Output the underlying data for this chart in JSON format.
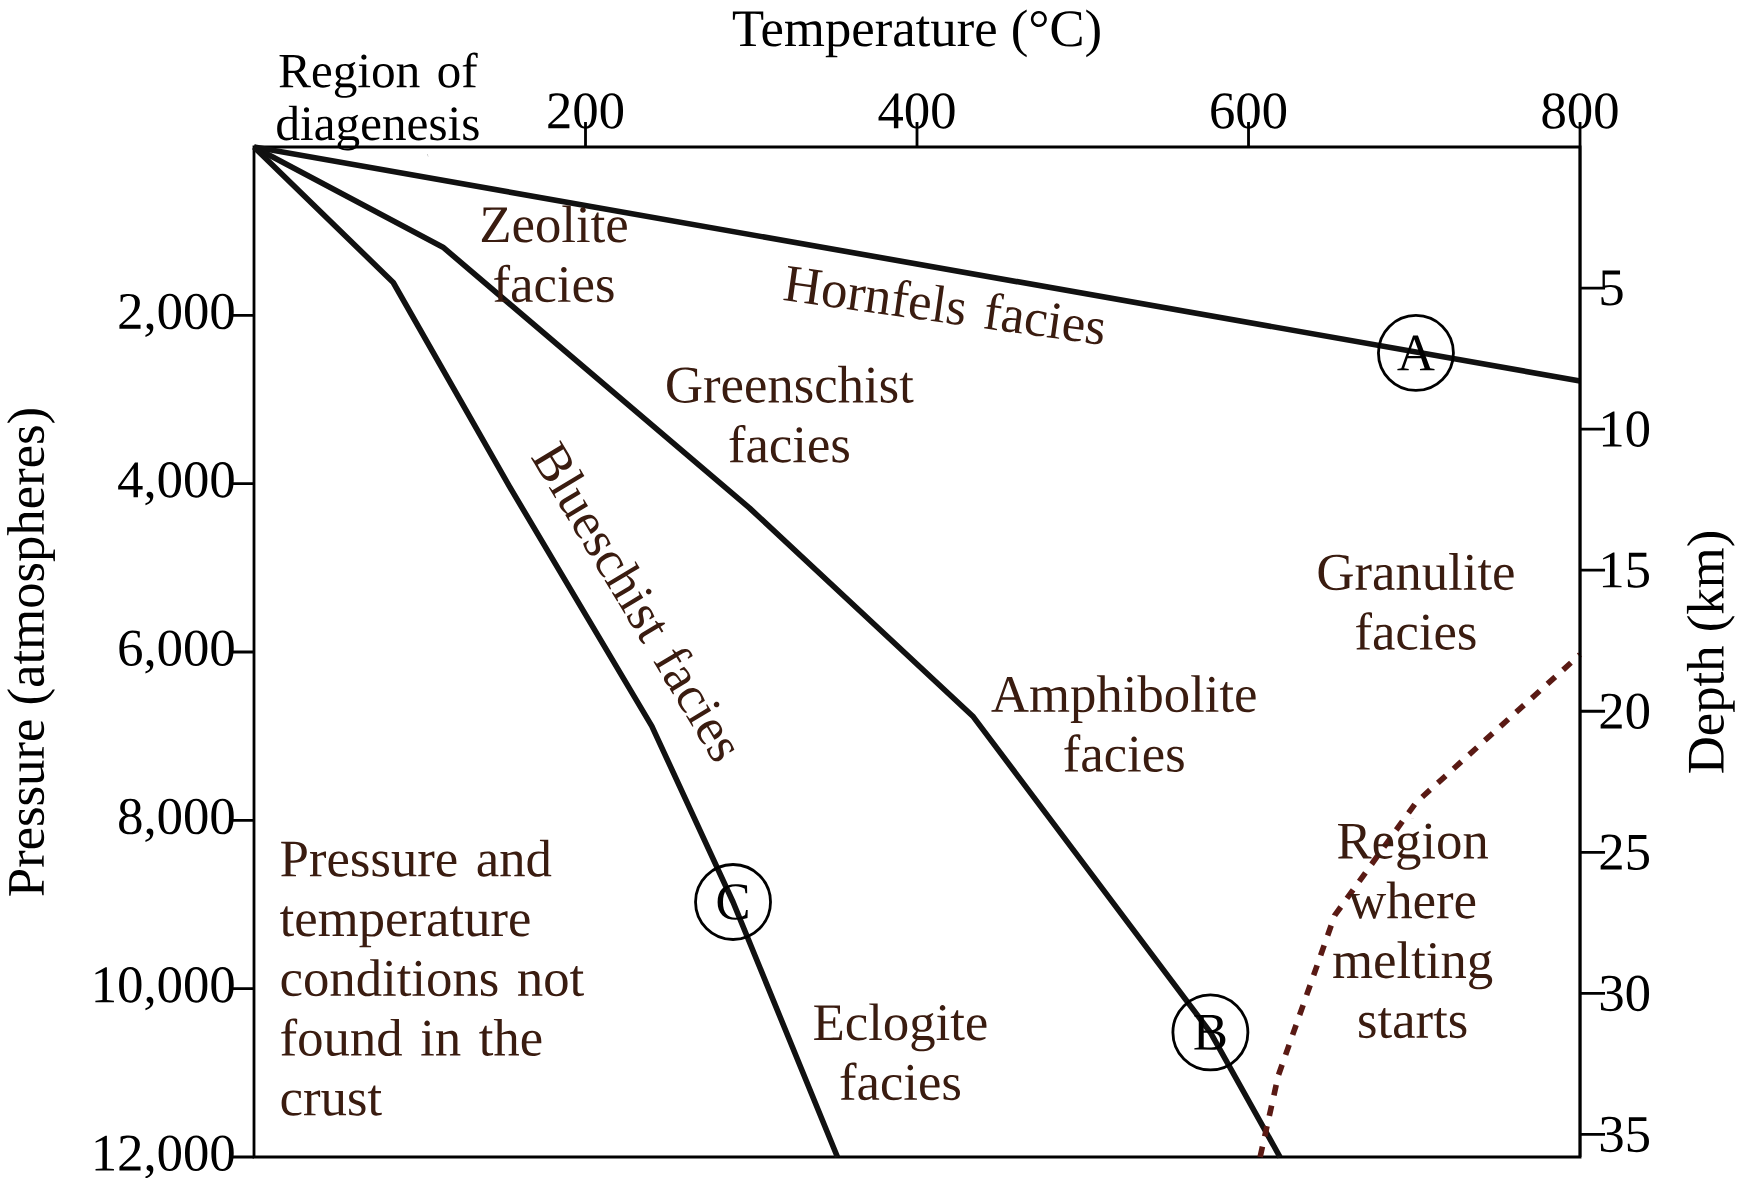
{
  "chart_data": {
    "type": "line",
    "xlabel": "Temperature (°C)",
    "ylabel": "Pressure (atmospheres)",
    "y2label": "Depth (km)",
    "xlim": [
      0,
      800
    ],
    "xticks": [
      200,
      400,
      600,
      800
    ],
    "ylim": [
      12000,
      0
    ],
    "yticks": [
      {
        "value": 2000,
        "label": "2,000"
      },
      {
        "value": 4000,
        "label": "4,000"
      },
      {
        "value": 6000,
        "label": "6,000"
      },
      {
        "value": 8000,
        "label": "8,000"
      },
      {
        "value": 10000,
        "label": "10,000"
      },
      {
        "value": 12000,
        "label": "12,000"
      }
    ],
    "y2lim": [
      35.8,
      0
    ],
    "y2ticks": [
      5,
      10,
      15,
      20,
      25,
      30,
      35
    ],
    "series": [
      {
        "color": "#111111",
        "x": [
          0,
          800
        ],
        "values": [
          0,
          2780
        ]
      },
      {
        "color": "#111111",
        "x": [
          0,
          114,
          299,
          434,
          577,
          619
        ],
        "values": [
          0,
          1190,
          4290,
          6770,
          10520,
          12000
        ]
      },
      {
        "color": "#111111",
        "x": [
          0,
          84,
          154,
          240,
          289,
          352
        ],
        "values": [
          0,
          1610,
          4030,
          6880,
          8970,
          12000
        ]
      },
      {
        "color": "#5a1a14",
        "line_style": "dashed",
        "x": [
          607,
          618,
          652,
          701,
          800
        ],
        "values": [
          12000,
          11030,
          9130,
          7790,
          6030
        ]
      }
    ],
    "annotations": [
      "Region of diagenesis",
      "Zeolite facies",
      "Hornfels facies",
      "Greenschist facies",
      "Blueschist facies",
      "Amphibolite facies",
      "Granulite facies",
      "Eclogite facies",
      "Pressure and temperature conditions not found in the crust",
      {
        "text": "Region where melting starts",
        "x": 699,
        "y": 7980
      },
      {
        "text": "A",
        "x": 701,
        "y": 2447
      },
      {
        "text": "B",
        "x": 577,
        "y": 10520
      },
      {
        "text": "C",
        "x": 289,
        "y": 8970
      }
    ]
  }
}
